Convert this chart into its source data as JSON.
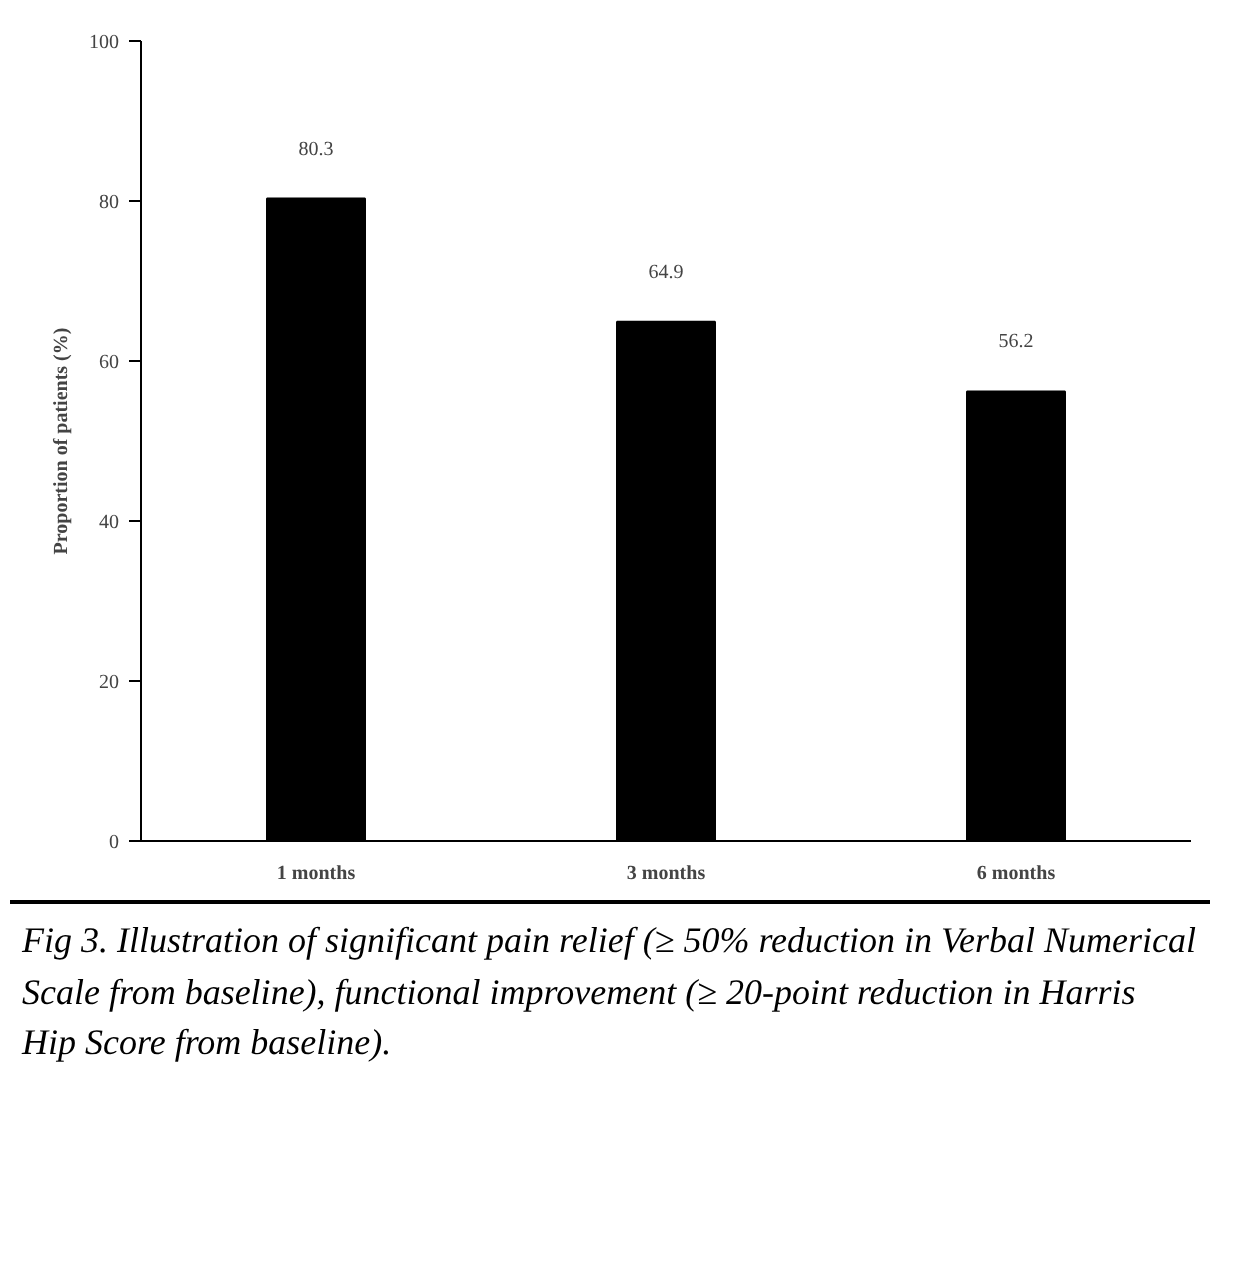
{
  "chart_data": {
    "type": "bar",
    "ylabel": "Proportion of patients (%)",
    "categories": [
      "1 months",
      "3 months",
      "6 months"
    ],
    "values": [
      80.3,
      64.9,
      56.2
    ],
    "color": "#000000",
    "ylim": [
      0,
      100
    ],
    "yticks": [
      0,
      20,
      40,
      60,
      80,
      100
    ],
    "grid": false,
    "data_labels": true,
    "annotations": [
      "Fig 3. Illustration of significant pain relief (≥ 50% reduction in Verbal Numerical Scale from baseline), functional improvement (≥ 20-point reduction in Harris Hip Score from baseline)."
    ]
  }
}
